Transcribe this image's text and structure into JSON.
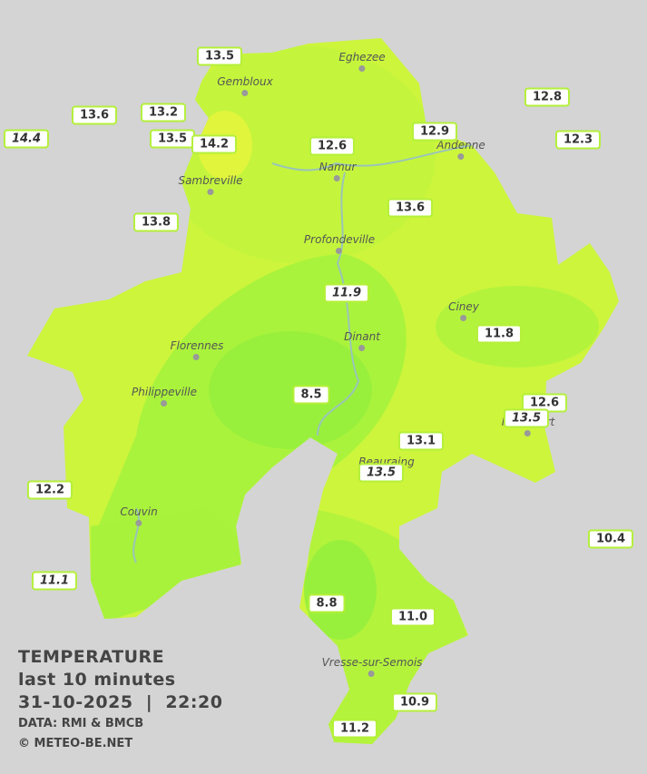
{
  "legend": {
    "title": "TEMPERATURE",
    "subtitle": "last 10 minutes",
    "datetime": "31-10-2025  |  22:20",
    "source": "DATA: RMI & BMCB",
    "credit": "© METEO-BE.NET"
  },
  "cities": [
    "Eghezee",
    "Gembloux",
    "Andenne",
    "Namur",
    "Sambreville",
    "Profondeville",
    "Ciney",
    "Dinant",
    "Florennes",
    "Philippeville",
    "Rochefort",
    "Beauraing",
    "Couvin",
    "Vresse-sur-Semois"
  ],
  "stations": [
    {
      "label": "13.5",
      "italic": false
    },
    {
      "label": "13.6",
      "italic": false
    },
    {
      "label": "13.2",
      "italic": false
    },
    {
      "label": "13.5",
      "italic": false
    },
    {
      "label": "14.2",
      "italic": false
    },
    {
      "label": "14.4",
      "italic": true
    },
    {
      "label": "12.6",
      "italic": false
    },
    {
      "label": "12.9",
      "italic": false
    },
    {
      "label": "12.8",
      "italic": false
    },
    {
      "label": "12.3",
      "italic": false
    },
    {
      "label": "13.8",
      "italic": false
    },
    {
      "label": "13.6",
      "italic": false
    },
    {
      "label": "11.9",
      "italic": true
    },
    {
      "label": "11.8",
      "italic": false
    },
    {
      "label": "8.5",
      "italic": false
    },
    {
      "label": "12.6",
      "italic": false
    },
    {
      "label": "13.5",
      "italic": true
    },
    {
      "label": "13.1",
      "italic": false
    },
    {
      "label": "13.5",
      "italic": true
    },
    {
      "label": "12.2",
      "italic": false
    },
    {
      "label": "10.4",
      "italic": false
    },
    {
      "label": "11.1",
      "italic": true
    },
    {
      "label": "8.8",
      "italic": false
    },
    {
      "label": "11.0",
      "italic": false
    },
    {
      "label": "10.9",
      "italic": false
    },
    {
      "label": "11.2",
      "italic": false
    }
  ]
}
